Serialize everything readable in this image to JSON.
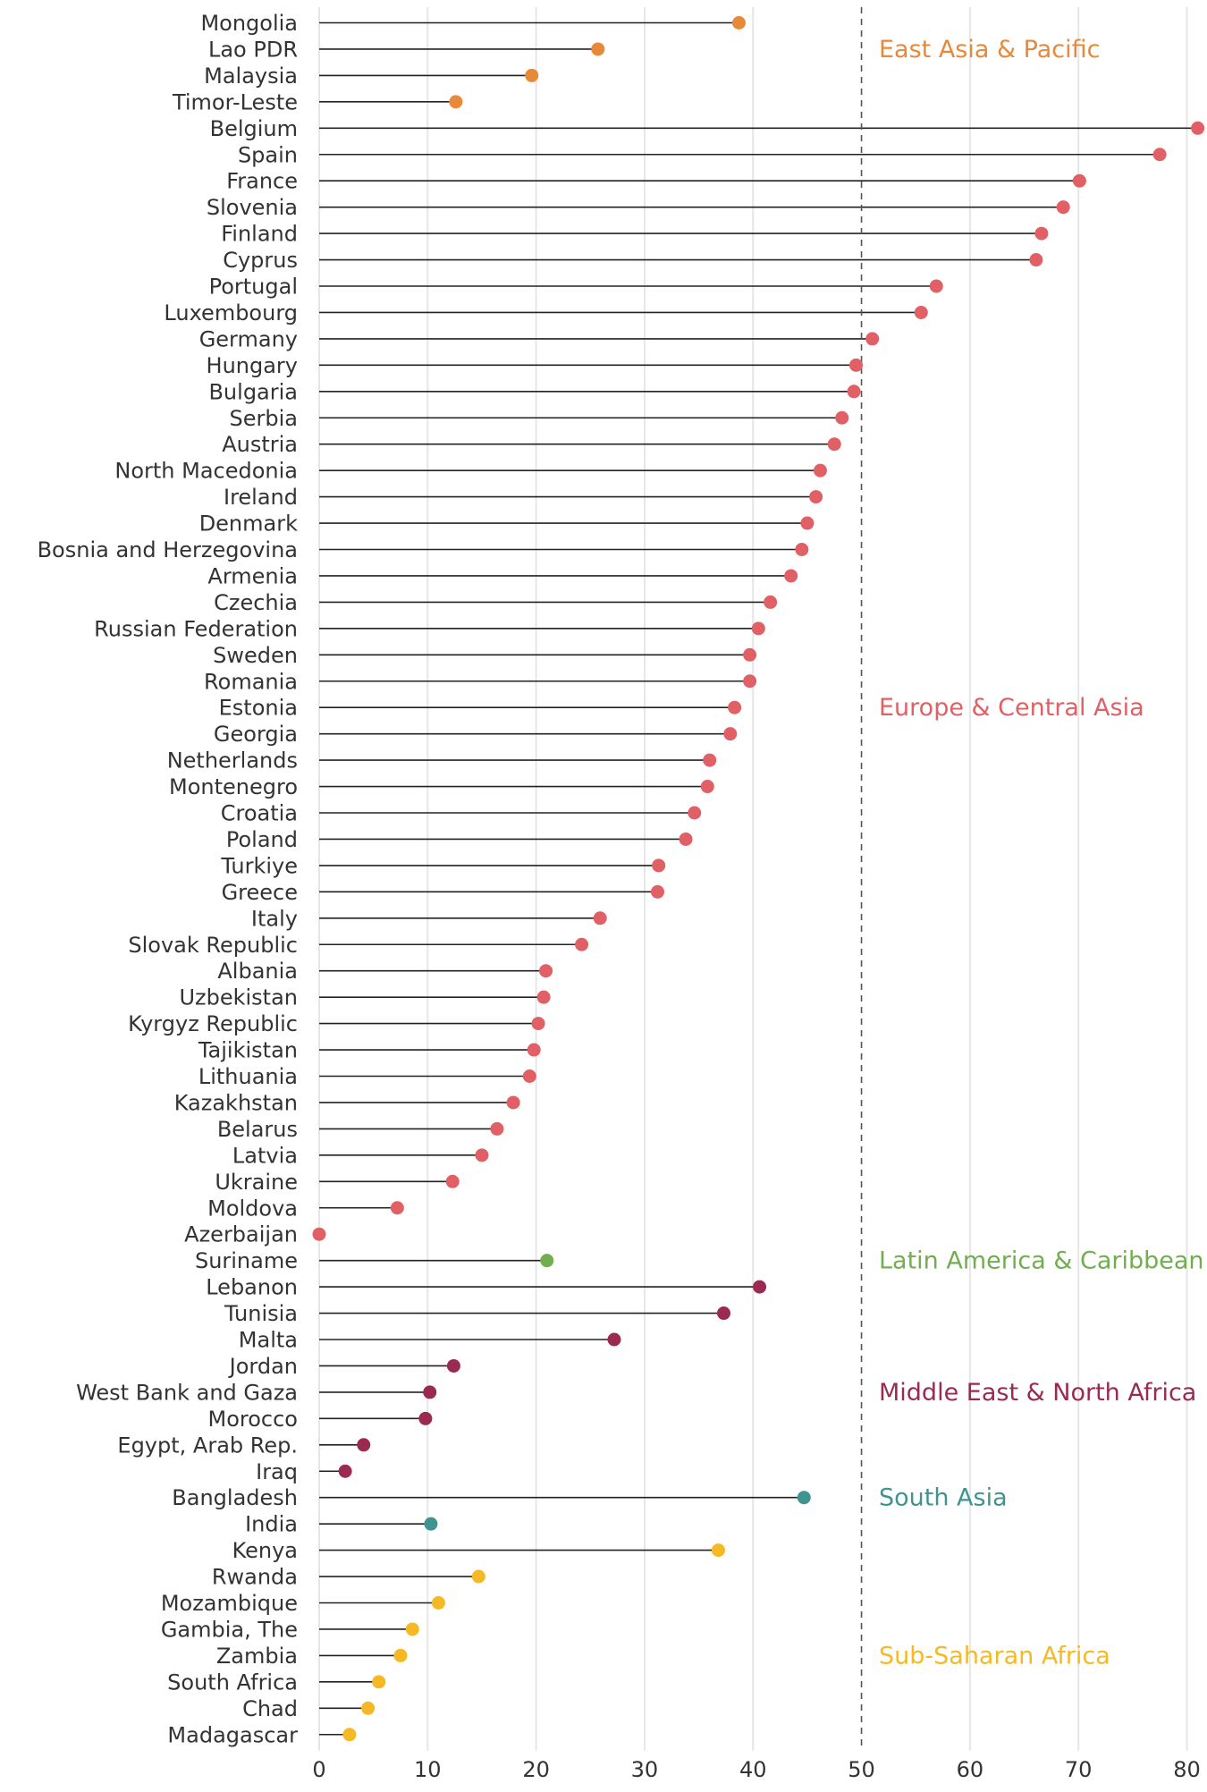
{
  "chart_data": {
    "type": "lollipop",
    "title": "",
    "xlabel": "",
    "ylabel": "",
    "xlim": [
      0,
      81
    ],
    "x_ticks": [
      0,
      10,
      20,
      30,
      40,
      50,
      60,
      70,
      80
    ],
    "reference_line": 50,
    "grid": true,
    "regions": [
      {
        "name": "East Asia & Pacific",
        "color": "#E8893A",
        "label_anchor": "Lao PDR"
      },
      {
        "name": "Europe & Central Asia",
        "color": "#E06066",
        "label_anchor": "Estonia"
      },
      {
        "name": "Latin America & Caribbean",
        "color": "#72AE4F",
        "label_anchor": "Suriname"
      },
      {
        "name": "Middle East & North Africa",
        "color": "#9B2A53",
        "label_anchor": "West Bank and Gaza"
      },
      {
        "name": "South Asia",
        "color": "#3F9391",
        "label_anchor": "Bangladesh"
      },
      {
        "name": "Sub-Saharan Africa",
        "color": "#F5B925",
        "label_anchor": "Zambia"
      }
    ],
    "points": [
      {
        "country": "Mongolia",
        "value": 38.7,
        "region": "East Asia & Pacific"
      },
      {
        "country": "Lao PDR",
        "value": 25.7,
        "region": "East Asia & Pacific"
      },
      {
        "country": "Malaysia",
        "value": 19.6,
        "region": "East Asia & Pacific"
      },
      {
        "country": "Timor-Leste",
        "value": 12.6,
        "region": "East Asia & Pacific"
      },
      {
        "country": "Belgium",
        "value": 81.0,
        "region": "Europe & Central Asia"
      },
      {
        "country": "Spain",
        "value": 77.5,
        "region": "Europe & Central Asia"
      },
      {
        "country": "France",
        "value": 70.1,
        "region": "Europe & Central Asia"
      },
      {
        "country": "Slovenia",
        "value": 68.6,
        "region": "Europe & Central Asia"
      },
      {
        "country": "Finland",
        "value": 66.6,
        "region": "Europe & Central Asia"
      },
      {
        "country": "Cyprus",
        "value": 66.1,
        "region": "Europe & Central Asia"
      },
      {
        "country": "Portugal",
        "value": 56.9,
        "region": "Europe & Central Asia"
      },
      {
        "country": "Luxembourg",
        "value": 55.5,
        "region": "Europe & Central Asia"
      },
      {
        "country": "Germany",
        "value": 51.0,
        "region": "Europe & Central Asia"
      },
      {
        "country": "Hungary",
        "value": 49.5,
        "region": "Europe & Central Asia"
      },
      {
        "country": "Bulgaria",
        "value": 49.3,
        "region": "Europe & Central Asia"
      },
      {
        "country": "Serbia",
        "value": 48.2,
        "region": "Europe & Central Asia"
      },
      {
        "country": "Austria",
        "value": 47.5,
        "region": "Europe & Central Asia"
      },
      {
        "country": "North Macedonia",
        "value": 46.2,
        "region": "Europe & Central Asia"
      },
      {
        "country": "Ireland",
        "value": 45.8,
        "region": "Europe & Central Asia"
      },
      {
        "country": "Denmark",
        "value": 45.0,
        "region": "Europe & Central Asia"
      },
      {
        "country": "Bosnia and Herzegovina",
        "value": 44.5,
        "region": "Europe & Central Asia"
      },
      {
        "country": "Armenia",
        "value": 43.5,
        "region": "Europe & Central Asia"
      },
      {
        "country": "Czechia",
        "value": 41.6,
        "region": "Europe & Central Asia"
      },
      {
        "country": "Russian Federation",
        "value": 40.5,
        "region": "Europe & Central Asia"
      },
      {
        "country": "Sweden",
        "value": 39.7,
        "region": "Europe & Central Asia"
      },
      {
        "country": "Romania",
        "value": 39.7,
        "region": "Europe & Central Asia"
      },
      {
        "country": "Estonia",
        "value": 38.3,
        "region": "Europe & Central Asia"
      },
      {
        "country": "Georgia",
        "value": 37.9,
        "region": "Europe & Central Asia"
      },
      {
        "country": "Netherlands",
        "value": 36.0,
        "region": "Europe & Central Asia"
      },
      {
        "country": "Montenegro",
        "value": 35.8,
        "region": "Europe & Central Asia"
      },
      {
        "country": "Croatia",
        "value": 34.6,
        "region": "Europe & Central Asia"
      },
      {
        "country": "Poland",
        "value": 33.8,
        "region": "Europe & Central Asia"
      },
      {
        "country": "Turkiye",
        "value": 31.3,
        "region": "Europe & Central Asia"
      },
      {
        "country": "Greece",
        "value": 31.2,
        "region": "Europe & Central Asia"
      },
      {
        "country": "Italy",
        "value": 25.9,
        "region": "Europe & Central Asia"
      },
      {
        "country": "Slovak Republic",
        "value": 24.2,
        "region": "Europe & Central Asia"
      },
      {
        "country": "Albania",
        "value": 20.9,
        "region": "Europe & Central Asia"
      },
      {
        "country": "Uzbekistan",
        "value": 20.7,
        "region": "Europe & Central Asia"
      },
      {
        "country": "Kyrgyz Republic",
        "value": 20.2,
        "region": "Europe & Central Asia"
      },
      {
        "country": "Tajikistan",
        "value": 19.8,
        "region": "Europe & Central Asia"
      },
      {
        "country": "Lithuania",
        "value": 19.4,
        "region": "Europe & Central Asia"
      },
      {
        "country": "Kazakhstan",
        "value": 17.9,
        "region": "Europe & Central Asia"
      },
      {
        "country": "Belarus",
        "value": 16.4,
        "region": "Europe & Central Asia"
      },
      {
        "country": "Latvia",
        "value": 15.0,
        "region": "Europe & Central Asia"
      },
      {
        "country": "Ukraine",
        "value": 12.3,
        "region": "Europe & Central Asia"
      },
      {
        "country": "Moldova",
        "value": 7.2,
        "region": "Europe & Central Asia"
      },
      {
        "country": "Azerbaijan",
        "value": 0.0,
        "region": "Europe & Central Asia"
      },
      {
        "country": "Suriname",
        "value": 21.0,
        "region": "Latin America & Caribbean"
      },
      {
        "country": "Lebanon",
        "value": 40.6,
        "region": "Middle East & North Africa"
      },
      {
        "country": "Tunisia",
        "value": 37.3,
        "region": "Middle East & North Africa"
      },
      {
        "country": "Malta",
        "value": 27.2,
        "region": "Middle East & North Africa"
      },
      {
        "country": "Jordan",
        "value": 12.4,
        "region": "Middle East & North Africa"
      },
      {
        "country": "West Bank and Gaza",
        "value": 10.2,
        "region": "Middle East & North Africa"
      },
      {
        "country": "Morocco",
        "value": 9.8,
        "region": "Middle East & North Africa"
      },
      {
        "country": "Egypt, Arab Rep.",
        "value": 4.1,
        "region": "Middle East & North Africa"
      },
      {
        "country": "Iraq",
        "value": 2.4,
        "region": "Middle East & North Africa"
      },
      {
        "country": "Bangladesh",
        "value": 44.7,
        "region": "South Asia"
      },
      {
        "country": "India",
        "value": 10.3,
        "region": "South Asia"
      },
      {
        "country": "Kenya",
        "value": 36.8,
        "region": "Sub-Saharan Africa"
      },
      {
        "country": "Rwanda",
        "value": 14.7,
        "region": "Sub-Saharan Africa"
      },
      {
        "country": "Mozambique",
        "value": 11.0,
        "region": "Sub-Saharan Africa"
      },
      {
        "country": "Gambia, The",
        "value": 8.6,
        "region": "Sub-Saharan Africa"
      },
      {
        "country": "Zambia",
        "value": 7.5,
        "region": "Sub-Saharan Africa"
      },
      {
        "country": "South Africa",
        "value": 5.5,
        "region": "Sub-Saharan Africa"
      },
      {
        "country": "Chad",
        "value": 4.5,
        "region": "Sub-Saharan Africa"
      },
      {
        "country": "Madagascar",
        "value": 2.8,
        "region": "Sub-Saharan Africa"
      }
    ]
  }
}
